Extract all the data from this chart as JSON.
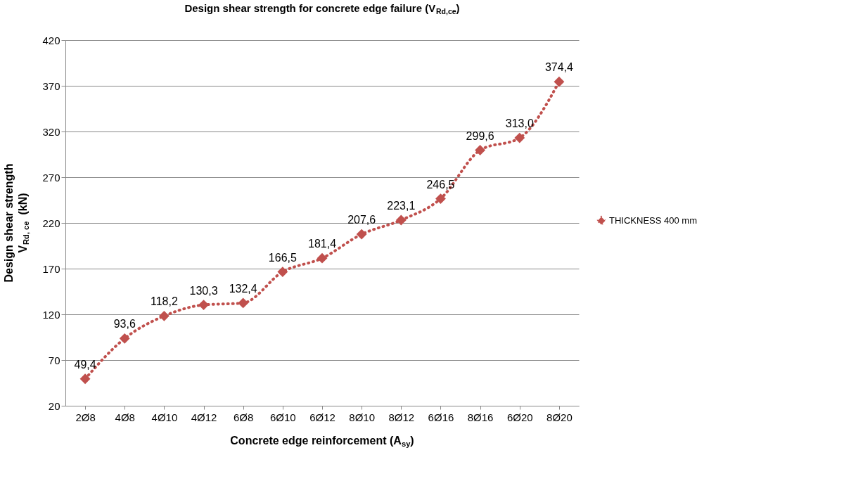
{
  "chart_data": {
    "type": "line",
    "title": "Design shear strength for concrete edge failure (V$_{Rd,ce}$)",
    "xlabel": "Concrete edge reinforcement (A$_{sy}$)",
    "ylabel": "Design shear strength\nV$_{Rd, ce}$  (kN)",
    "categories": [
      "2Ø8",
      "4Ø8",
      "4Ø10",
      "4Ø12",
      "6Ø8",
      "6Ø10",
      "6Ø12",
      "8Ø10",
      "8Ø12",
      "6Ø16",
      "8Ø16",
      "6Ø20",
      "8Ø20"
    ],
    "series": [
      {
        "name": "THICKNESS 400 mm",
        "color": "#c0504d",
        "values": [
          49.4,
          93.6,
          118.2,
          130.3,
          132.4,
          166.5,
          181.4,
          207.6,
          223.1,
          246.5,
          299.6,
          313.0,
          374.4
        ],
        "value_labels": [
          "49,4",
          "93,6",
          "118,2",
          "130,3",
          "132,4",
          "166,5",
          "181,4",
          "207,6",
          "223,1",
          "246,5",
          "299,6",
          "313,0",
          "374,4"
        ]
      }
    ],
    "ylim": [
      20,
      420
    ],
    "yticks": [
      20,
      70,
      120,
      170,
      220,
      270,
      320,
      370,
      420
    ],
    "grid": "y",
    "legend": "right",
    "marker": "diamond",
    "line_style": "dotted"
  }
}
